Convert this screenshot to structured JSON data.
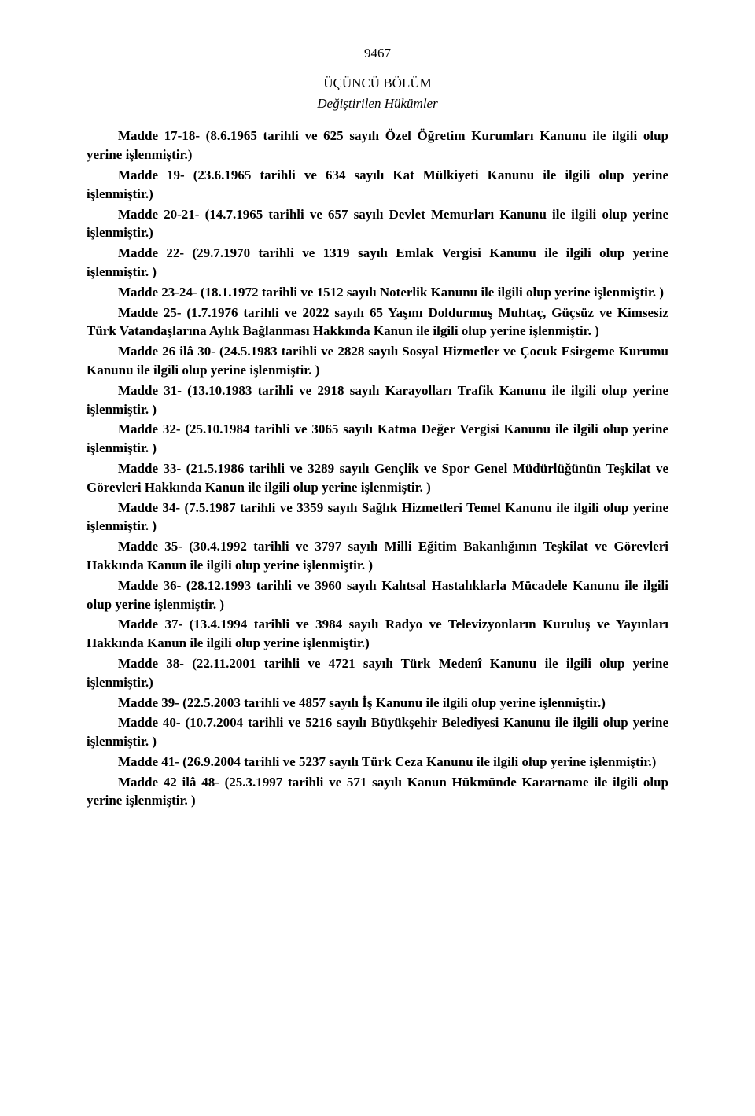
{
  "page_number": "9467",
  "section_heading": "ÜÇÜNCÜ BÖLÜM",
  "section_subheading": "Değiştirilen Hükümler",
  "paragraphs": [
    {
      "lead": "Madde 17-18- (8.6.1965 tarihli ve 625 sayılı Özel Öğretim Kurumları Kanunu ile ilgili olup yerine işlenmiştir.)",
      "rest": ""
    },
    {
      "lead": "Madde 19- (23.6.1965 tarihli ve 634 sayılı Kat Mülkiyeti Kanunu ile ilgili olup yerine işlenmiştir.)",
      "rest": ""
    },
    {
      "lead": "Madde 20-21- (14.7.1965 tarihli ve 657 sayılı Devlet Memurları Kanunu ile ilgili olup yerine işlenmiştir.)",
      "rest": ""
    },
    {
      "lead": "Madde 22- (29.7.1970 tarihli ve 1319 sayılı Emlak Vergisi Kanunu ile ilgili olup yerine işlenmiştir. )",
      "rest": ""
    },
    {
      "lead": "Madde 23-24- (18.1.1972 tarihli ve 1512 sayılı Noterlik Kanunu ile ilgili olup yerine işlenmiştir. )",
      "rest": ""
    },
    {
      "lead": "Madde 25- (1.7.1976 tarihli ve 2022 sayılı 65 Yaşını Doldurmuş Muhtaç, Güçsüz ve Kimsesiz Türk Vatandaşlarına Aylık Bağlanması Hakkında Kanun ile ilgili olup yerine işlenmiştir. )",
      "rest": ""
    },
    {
      "lead": "Madde 26 ilâ 30- (24.5.1983 tarihli ve 2828 sayılı Sosyal Hizmetler ve Çocuk Esirgeme Kurumu Kanunu ile ilgili olup yerine işlenmiştir. )",
      "rest": ""
    },
    {
      "lead": "Madde 31- (13.10.1983 tarihli ve 2918 sayılı Karayolları Trafik Kanunu ile ilgili olup yerine işlenmiştir. )",
      "rest": ""
    },
    {
      "lead": "Madde 32- (25.10.1984 tarihli ve 3065 sayılı Katma Değer Vergisi Kanunu ile ilgili olup yerine işlenmiştir. )",
      "rest": ""
    },
    {
      "lead": "Madde 33- (21.5.1986 tarihli ve 3289 sayılı Gençlik ve Spor Genel Müdürlüğünün Teşkilat ve Görevleri Hakkında Kanun ile ilgili olup yerine işlenmiştir. )",
      "rest": ""
    },
    {
      "lead": "Madde 34- (7.5.1987 tarihli ve 3359 sayılı Sağlık Hizmetleri Temel Kanunu ile ilgili olup yerine işlenmiştir. )",
      "rest": ""
    },
    {
      "lead": "Madde 35- (30.4.1992 tarihli ve 3797 sayılı Milli Eğitim Bakanlığının Teşkilat ve Görevleri Hakkında Kanun ile ilgili olup yerine işlenmiştir. )",
      "rest": ""
    },
    {
      "lead": "Madde 36- (28.12.1993 tarihli ve 3960 sayılı Kalıtsal Hastalıklarla Mücadele Kanunu ile ilgili olup yerine işlenmiştir. )",
      "rest": ""
    },
    {
      "lead": "Madde 37- (13.4.1994 tarihli ve 3984 sayılı Radyo ve Televizyonların Kuruluş ve Yayınları Hakkında Kanun ile ilgili olup yerine işlenmiştir.)",
      "rest": ""
    },
    {
      "lead": "Madde 38- (22.11.2001 tarihli ve 4721 sayılı Türk Medenî Kanunu ile ilgili olup yerine işlenmiştir.)",
      "rest": ""
    },
    {
      "lead": "Madde 39- (22.5.2003 tarihli ve 4857 sayılı İş Kanunu ile ilgili olup yerine işlenmiştir.)",
      "rest": ""
    },
    {
      "lead": "Madde 40- (10.7.2004 tarihli ve 5216 sayılı Büyükşehir Belediyesi Kanunu ile ilgili olup yerine işlenmiştir. )",
      "rest": ""
    },
    {
      "lead": "Madde 41- (26.9.2004 tarihli ve 5237 sayılı Türk Ceza Kanunu ile ilgili olup yerine işlenmiştir.)",
      "rest": ""
    },
    {
      "lead": "Madde 42 ilâ 48- (25.3.1997 tarihli ve 571 sayılı Kanun Hükmünde Kararname ile ilgili olup yerine işlenmiştir. )",
      "rest": ""
    }
  ]
}
